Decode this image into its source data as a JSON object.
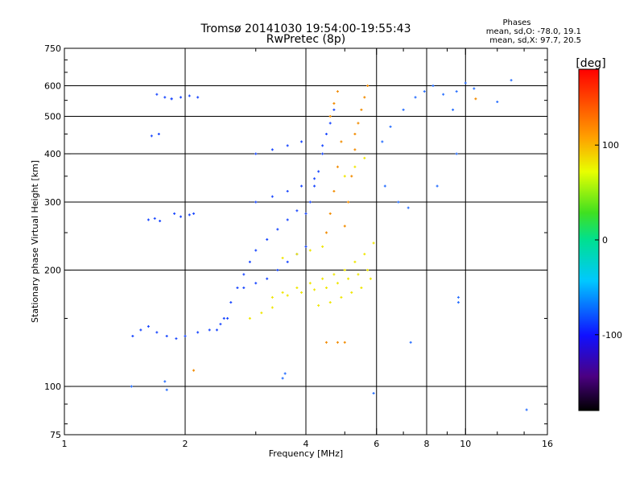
{
  "chart_data": {
    "type": "scatter",
    "title": "Tromsø 20141030 19:54:00-19:55:43",
    "subtitle": "RwPretec (8p)",
    "stats": {
      "header": "Phases",
      "line_o": "mean, sd,O: -78.0, 19.1",
      "line_x": "mean, sd,X:  97.7, 20.5"
    },
    "xlabel": "Frequency [MHz]",
    "ylabel": "Stationary phase Virtual Height [km]",
    "x_scale": "log",
    "y_scale": "log",
    "xlim": [
      1,
      16
    ],
    "ylim": [
      75,
      750
    ],
    "x_ticks": [
      1,
      2,
      4,
      6,
      8,
      10,
      16
    ],
    "x_tick_labels": [
      "1",
      "2",
      "4",
      "6",
      "8",
      "10",
      "16"
    ],
    "x_gridlines": [
      2,
      4,
      6,
      8,
      10
    ],
    "y_ticks": [
      75,
      100,
      200,
      300,
      400,
      500,
      600,
      750
    ],
    "y_tick_labels": [
      "75",
      "100",
      "200",
      "300",
      "400",
      "500",
      "600",
      "750"
    ],
    "y_gridlines": [
      100,
      200,
      300,
      400,
      500,
      600
    ],
    "grid": true,
    "colorbar": {
      "label": "[deg]",
      "range": [
        -180,
        180
      ],
      "ticks": [
        100,
        0,
        -100
      ],
      "tick_labels": [
        "100",
        "0",
        "-100"
      ],
      "colormap": "rainbow"
    },
    "series": [
      {
        "mode": "O",
        "phase_color": "#1e4bff",
        "traces": [
          {
            "x": [
              1.48,
              1.55,
              1.62,
              1.7,
              1.8,
              1.9,
              2.0,
              2.15,
              2.3,
              2.45,
              2.55
            ],
            "y": [
              135,
              140,
              143,
              138,
              135,
              133,
              135,
              138,
              140,
              145,
              150
            ]
          },
          {
            "x": [
              2.4,
              2.5,
              2.6,
              2.7,
              2.8,
              2.9,
              3.0,
              3.2,
              3.4,
              3.6,
              3.8
            ],
            "y": [
              140,
              150,
              165,
              180,
              195,
              210,
              225,
              240,
              255,
              270,
              285
            ]
          },
          {
            "x": [
              2.8,
              3.0,
              3.2,
              3.4,
              3.6,
              3.8,
              4.0
            ],
            "y": [
              180,
              185,
              190,
              200,
              210,
              220,
              230
            ]
          },
          {
            "x": [
              3.0,
              3.3,
              3.6,
              3.9,
              4.2
            ],
            "y": [
              300,
              310,
              320,
              330,
              345
            ]
          },
          {
            "x": [
              3.0,
              3.3,
              3.6,
              3.9
            ],
            "y": [
              400,
              410,
              420,
              430
            ]
          },
          {
            "x": [
              1.65,
              1.72
            ],
            "y": [
              445,
              450
            ]
          },
          {
            "x": [
              1.62,
              1.68,
              1.73
            ],
            "y": [
              270,
              272,
              268
            ]
          },
          {
            "x": [
              1.88,
              1.95,
              2.05,
              2.1
            ],
            "y": [
              280,
              275,
              278,
              280
            ]
          },
          {
            "x": [
              1.85,
              1.95,
              2.05,
              2.15
            ],
            "y": [
              555,
              560,
              565,
              560
            ]
          },
          {
            "x": [
              1.7,
              1.78,
              1.85
            ],
            "y": [
              570,
              560,
              555
            ]
          },
          {
            "x": [
              4.0,
              4.1,
              4.2,
              4.3,
              4.4
            ],
            "y": [
              280,
              300,
              330,
              360,
              400
            ]
          },
          {
            "x": [
              4.4,
              4.5,
              4.6,
              4.7
            ],
            "y": [
              420,
              450,
              480,
              520
            ]
          }
        ]
      },
      {
        "mode": "X",
        "phase_color": "#f0e600",
        "traces": [
          {
            "x": [
              3.5,
              3.8,
              4.1,
              4.4,
              4.7,
              5.0,
              5.3,
              5.6,
              5.9
            ],
            "y": [
              175,
              180,
              185,
              190,
              195,
              200,
              210,
              220,
              235
            ]
          },
          {
            "x": [
              3.3,
              3.6,
              3.9,
              4.2,
              4.5,
              4.8,
              5.1,
              5.4,
              5.7
            ],
            "y": [
              170,
              172,
              175,
              178,
              180,
              185,
              190,
              195,
              200
            ]
          },
          {
            "x": [
              4.3,
              4.6,
              4.9,
              5.2,
              5.5,
              5.8
            ],
            "y": [
              162,
              165,
              170,
              175,
              180,
              190
            ]
          },
          {
            "x": [
              2.9,
              3.1,
              3.3
            ],
            "y": [
              150,
              155,
              160
            ]
          },
          {
            "x": [
              3.5,
              3.8,
              4.1,
              4.4
            ],
            "y": [
              215,
              220,
              225,
              230
            ]
          },
          {
            "x": [
              5.0,
              5.3,
              5.6
            ],
            "y": [
              350,
              370,
              390
            ]
          }
        ]
      },
      {
        "mode": "X-high",
        "phase_color": "#f28c00",
        "traces": [
          {
            "x": [
              4.5,
              4.6,
              4.7,
              4.8,
              4.9
            ],
            "y": [
              250,
              280,
              320,
              370,
              430
            ]
          },
          {
            "x": [
              5.0,
              5.1,
              5.2,
              5.3
            ],
            "y": [
              260,
              300,
              350,
              410
            ]
          },
          {
            "x": [
              5.3,
              5.4,
              5.5,
              5.6,
              5.7
            ],
            "y": [
              450,
              480,
              520,
              560,
              600
            ]
          },
          {
            "x": [
              4.6,
              4.7,
              4.8
            ],
            "y": [
              500,
              540,
              580
            ]
          },
          {
            "x": [
              2.1,
              4.5,
              4.8,
              5.0,
              10.6
            ],
            "y": [
              110,
              130,
              130,
              130,
              555
            ]
          }
        ]
      },
      {
        "mode": "scattered",
        "phase_color": "#2a70ff",
        "traces": [
          {
            "x": [
              6.2,
              6.5,
              7.0,
              7.5,
              7.9,
              8.3,
              8.8,
              9.3
            ],
            "y": [
              430,
              470,
              520,
              560,
              580,
              600,
              570,
              520
            ]
          },
          {
            "x": [
              6.3,
              6.8,
              7.2,
              8.5,
              9.5
            ],
            "y": [
              330,
              300,
              290,
              330,
              400
            ]
          },
          {
            "x": [
              9.5,
              10.0,
              10.5,
              12.0,
              13.0
            ],
            "y": [
              580,
              610,
              590,
              545,
              620
            ]
          },
          {
            "x": [
              7.3,
              9.6,
              9.6,
              14.2,
              5.9
            ],
            "y": [
              130,
              165,
              170,
              87,
              96
            ]
          },
          {
            "x": [
              1.47,
              1.78,
              1.8,
              3.5,
              3.55
            ],
            "y": [
              100,
              103,
              98,
              105,
              108
            ]
          }
        ]
      }
    ]
  }
}
